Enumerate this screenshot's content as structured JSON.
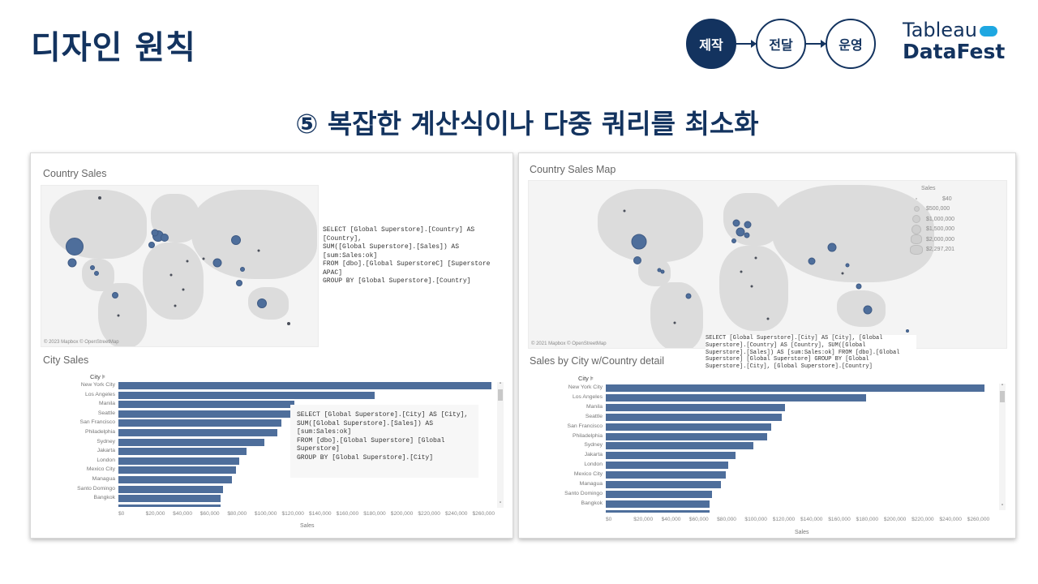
{
  "header": {
    "title": "디자인 원칙",
    "flow_steps": [
      {
        "label": "제작",
        "active": true
      },
      {
        "label": "전달",
        "active": false
      },
      {
        "label": "운영",
        "active": false
      }
    ],
    "logo": {
      "top": "Tableau",
      "bottom": "DataFest",
      "cloud_color": "#1ea7e1"
    },
    "subtitle": "⑤ 복잡한 계산식이나 다중 쿼리를 최소화",
    "primary_color": "#13335f"
  },
  "left_panel": {
    "map": {
      "title": "Country Sales",
      "credit": "© 2023 Mapbox © OpenStreetMap",
      "query": "SELECT [Global Superstore].[Country] AS\n[Country],\nSUM([Global Superstore].[Sales]) AS\n[sum:Sales:ok]\nFROM [dbo].[Global SuperstoreC] [Superstore\nAPAC]\nGROUP BY [Global Superstore].[Country]"
    },
    "bars": {
      "title": "City Sales",
      "column_header": "City ⊧",
      "query": "SELECT [Global Superstore].[City] AS [City],\nSUM([Global Superstore].[Sales]) AS\n[sum:Sales:ok]\nFROM [dbo].[Global Superstore] [Global\nSuperstore]\nGROUP BY [Global Superstore].[City]",
      "axis_ticks": [
        "$0",
        "$20,000",
        "$40,000",
        "$60,000",
        "$80,000",
        "$100,000",
        "$120,000",
        "$140,000",
        "$160,000",
        "$180,000",
        "$200,000",
        "$220,000",
        "$240,000",
        "$260,000"
      ],
      "axis_title": "Sales"
    }
  },
  "right_panel": {
    "map": {
      "title": "Country Sales Map",
      "credit": "© 2021 Mapbox © OpenStreetMap",
      "query": "SELECT [Global Superstore].[City] AS [City], [Global\nSuperstore].[Country] AS [Country], SUM([Global\nSuperstore].[Sales]) AS [sum:Sales:ok] FROM [dbo].[Global\nSuperstore] [Global Superstore] GROUP BY [Global\nSuperstore].[City], [Global Superstore].[Country]",
      "legend": {
        "title": "Sales",
        "items": [
          "$40",
          "$500,000",
          "$1,000,000",
          "$1,500,000",
          "$2,000,000",
          "$2,297,201"
        ]
      }
    },
    "bars": {
      "title": "Sales by City w/Country detail",
      "column_header": "City ⊧",
      "axis_ticks": [
        "$0",
        "$20,000",
        "$40,000",
        "$60,000",
        "$80,000",
        "$100,000",
        "$120,000",
        "$140,000",
        "$160,000",
        "$180,000",
        "$200,000",
        "$220,000",
        "$240,000",
        "$260,000"
      ],
      "axis_title": "Sales"
    }
  },
  "chart_data": [
    {
      "type": "bar",
      "title": "City Sales",
      "xlabel": "Sales",
      "ylabel": "City",
      "categories": [
        "New York City",
        "Los Angeles",
        "Manila",
        "Seattle",
        "San Francisco",
        "Philadelphia",
        "Sydney",
        "Jakarta",
        "London",
        "Mexico City",
        "Managua",
        "Santo Domingo",
        "Bangkok"
      ],
      "values": [
        256000,
        176000,
        121000,
        119000,
        112000,
        109000,
        100000,
        88000,
        83000,
        81000,
        78000,
        72000,
        70000
      ],
      "xlim": [
        0,
        260000
      ]
    },
    {
      "type": "bar",
      "title": "Sales by City w/Country detail",
      "xlabel": "Sales",
      "ylabel": "City",
      "categories": [
        "New York City",
        "Los Angeles",
        "Manila",
        "Seattle",
        "San Francisco",
        "Philadelphia",
        "Sydney",
        "Jakarta",
        "London",
        "Mexico City",
        "Managua",
        "Santo Domingo",
        "Bangkok"
      ],
      "values": [
        256000,
        176000,
        121000,
        119000,
        112000,
        109000,
        100000,
        88000,
        83000,
        81000,
        78000,
        72000,
        70000
      ],
      "xlim": [
        0,
        260000
      ]
    },
    {
      "type": "scatter",
      "title": "Country Sales Map",
      "legend": {
        "title": "Sales",
        "sizes": [
          "$40",
          "$500,000",
          "$1,000,000",
          "$1,500,000",
          "$2,000,000",
          "$2,297,201"
        ]
      }
    }
  ]
}
